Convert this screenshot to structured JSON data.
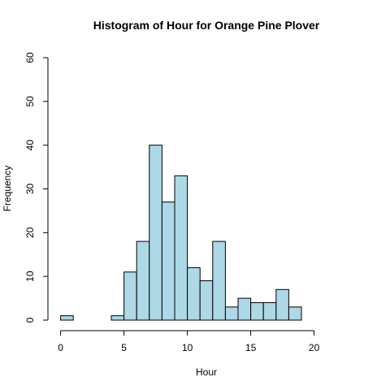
{
  "chart_data": {
    "type": "bar",
    "title": "Histogram of Hour for Orange Pine Plover",
    "xlabel": "Hour",
    "ylabel": "Frequency",
    "bin_width": 1,
    "bins": [
      {
        "x0": 0,
        "x1": 1,
        "count": 1
      },
      {
        "x0": 1,
        "x1": 2,
        "count": 0
      },
      {
        "x0": 2,
        "x1": 3,
        "count": 0
      },
      {
        "x0": 3,
        "x1": 4,
        "count": 0
      },
      {
        "x0": 4,
        "x1": 5,
        "count": 1
      },
      {
        "x0": 5,
        "x1": 6,
        "count": 11
      },
      {
        "x0": 6,
        "x1": 7,
        "count": 18
      },
      {
        "x0": 7,
        "x1": 8,
        "count": 40
      },
      {
        "x0": 8,
        "x1": 9,
        "count": 27
      },
      {
        "x0": 9,
        "x1": 10,
        "count": 33
      },
      {
        "x0": 10,
        "x1": 11,
        "count": 12
      },
      {
        "x0": 11,
        "x1": 12,
        "count": 9
      },
      {
        "x0": 12,
        "x1": 13,
        "count": 18
      },
      {
        "x0": 13,
        "x1": 14,
        "count": 3
      },
      {
        "x0": 14,
        "x1": 15,
        "count": 5
      },
      {
        "x0": 15,
        "x1": 16,
        "count": 4
      },
      {
        "x0": 16,
        "x1": 17,
        "count": 4
      },
      {
        "x0": 17,
        "x1": 18,
        "count": 7
      },
      {
        "x0": 18,
        "x1": 19,
        "count": 3
      }
    ],
    "xlim": [
      -1,
      24
    ],
    "ylim": [
      0,
      60
    ],
    "xticks": [
      0,
      5,
      10,
      15,
      20
    ],
    "xtick_labels": [
      "0",
      "5",
      "10",
      "15",
      "20"
    ],
    "yticks": [
      0,
      10,
      20,
      30,
      40,
      50,
      60
    ],
    "ytick_labels": [
      "0",
      "10",
      "20",
      "30",
      "40",
      "50",
      "60"
    ],
    "bar_color": "#ADD8E6",
    "edge_color": "#000000",
    "grid": false
  }
}
